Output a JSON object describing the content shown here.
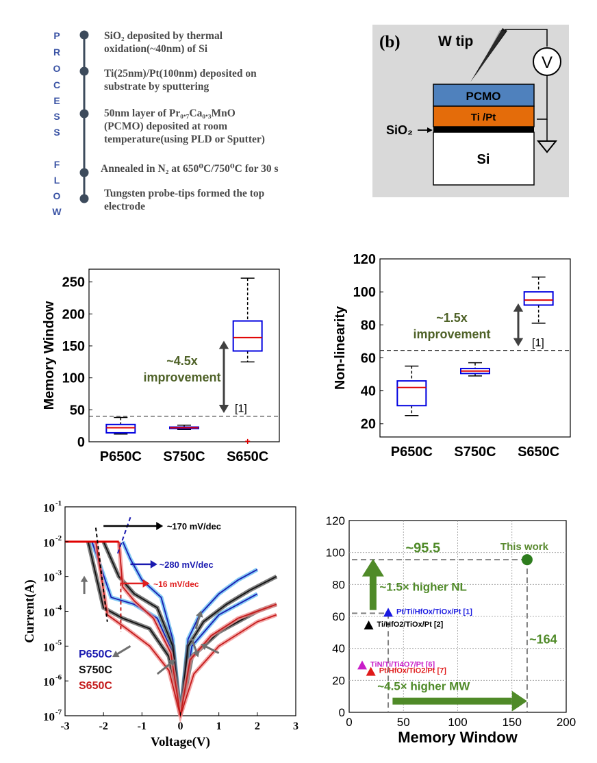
{
  "process_flow": {
    "letters": [
      "P",
      "R",
      "O",
      "C",
      "E",
      "S",
      "S",
      "F",
      "L",
      "O",
      "W"
    ],
    "steps": [
      {
        "label": "SiO₂ deposited by thermal\noxidation(~40nm) of Si"
      },
      {
        "label": "Ti(25nm)/Pt(100nm) deposited on\nsubstrate by sputtering"
      },
      {
        "label": "50nm layer of Pr₀.₇Ca₀.₃MnO\n(PCMO) deposited at room\ntemperature(using PLD or Sputter)"
      },
      {
        "label": "Annealed in N₂ at 650⁰C/750⁰C for 30 s"
      },
      {
        "label": "Tungsten probe-tips formed the top\nelectrode"
      }
    ]
  },
  "device_diagram": {
    "panel_label": "(b)",
    "tip_label": "W tip",
    "meter_label": "V",
    "layers": {
      "pcmo": "PCMO",
      "tipt": "Ti /Pt",
      "si": "Si",
      "sio2": "SiO₂"
    },
    "colors": {
      "background": "#d9d9d9",
      "pcmo": "#4f81bd",
      "tipt": "#e46c0a",
      "sio2": "#000000",
      "si": "#ffffff"
    }
  },
  "chart_data": [
    {
      "type": "box",
      "ylabel": "Memory Window",
      "categories": [
        "P650C",
        "S750C",
        "S650C"
      ],
      "ylim": [
        0,
        270
      ],
      "yticks": [
        0,
        50,
        100,
        150,
        200,
        250
      ],
      "boxes": [
        {
          "whisker_low": 12,
          "q1": 14,
          "median": 22,
          "q3": 27,
          "whisker_high": 38
        },
        {
          "whisker_low": 19,
          "q1": 21,
          "median": 22,
          "q3": 23,
          "whisker_high": 26
        },
        {
          "whisker_low": 125,
          "q1": 142,
          "median": 163,
          "q3": 189,
          "whisker_high": 256,
          "outlier": 0
        }
      ],
      "reference_line": {
        "value": 40,
        "label": "[1]"
      },
      "annotation": {
        "text": "~4.5x improvement",
        "line1": "~4.5x",
        "line2": "improvement",
        "arrow_from": 45,
        "arrow_to": 158
      }
    },
    {
      "type": "box",
      "ylabel": "Non-linearity",
      "categories": [
        "P650C",
        "S750C",
        "S650C"
      ],
      "ylim": [
        12,
        120
      ],
      "yticks": [
        20,
        40,
        60,
        80,
        100,
        120
      ],
      "boxes": [
        {
          "whisker_low": 25,
          "q1": 31,
          "median": 42,
          "q3": 46,
          "whisker_high": 55
        },
        {
          "whisker_low": 49,
          "q1": 50.5,
          "median": 52,
          "q3": 53.5,
          "whisker_high": 57
        },
        {
          "whisker_low": 81,
          "q1": 92,
          "median": 95,
          "q3": 100,
          "whisker_high": 109
        }
      ],
      "reference_line": {
        "value": 64.5,
        "label": "[1]"
      },
      "annotation": {
        "text": "~1.5x improvement",
        "line1": "~1.5x",
        "line2": "improvement",
        "arrow_from": 67,
        "arrow_to": 93
      }
    },
    {
      "type": "line",
      "xlabel": "Voltage(V)",
      "ylabel": "Current(A)",
      "xlim": [
        -3,
        3
      ],
      "xticks": [
        -3,
        -2,
        -1,
        0,
        1,
        2,
        3
      ],
      "ylim_log10": [
        -7,
        -1
      ],
      "ytick_base": "10",
      "ytick_exponents": [
        "-7",
        "-6",
        "-5",
        "-4",
        "-3",
        "-2",
        "-1"
      ],
      "series": [
        {
          "name": "P650C",
          "color": "#1a1ab0",
          "up": [
            [
              -1.5,
              -2
            ],
            [
              -1.3,
              -2.5
            ],
            [
              -1,
              -3.1
            ],
            [
              -0.5,
              -3.6
            ],
            [
              -0.2,
              -4.8
            ],
            [
              0,
              -7
            ],
            [
              0.2,
              -4.8
            ],
            [
              0.5,
              -4.1
            ],
            [
              1,
              -3.5
            ],
            [
              1.5,
              -3.1
            ],
            [
              2,
              -2.8
            ]
          ],
          "down": [
            [
              -2.3,
              -2
            ],
            [
              -1.8,
              -3.6
            ],
            [
              -1.2,
              -3.8
            ],
            [
              -0.6,
              -4.2
            ],
            [
              -0.2,
              -5.2
            ],
            [
              0,
              -7
            ],
            [
              0.3,
              -5.0
            ],
            [
              1,
              -4.1
            ],
            [
              2,
              -3.5
            ]
          ]
        },
        {
          "name": "S750C",
          "color": "#111111",
          "up": [
            [
              -2,
              -2
            ],
            [
              -1.6,
              -3
            ],
            [
              -1.2,
              -3.5
            ],
            [
              -0.6,
              -3.9
            ],
            [
              -0.2,
              -5
            ],
            [
              0,
              -7
            ],
            [
              0.2,
              -5
            ],
            [
              0.6,
              -4.3
            ],
            [
              1.2,
              -3.8
            ],
            [
              1.8,
              -3.4
            ],
            [
              2.5,
              -3
            ]
          ],
          "down": [
            [
              -2.4,
              -2
            ],
            [
              -2,
              -3.9
            ],
            [
              -1.5,
              -4.2
            ],
            [
              -0.8,
              -4.5
            ],
            [
              -0.3,
              -5.3
            ],
            [
              0,
              -7
            ],
            [
              0.3,
              -5.3
            ],
            [
              1,
              -4.6
            ],
            [
              2,
              -4.0
            ],
            [
              2.5,
              -3.8
            ]
          ]
        },
        {
          "name": "S650C",
          "color": "#c41a1a",
          "up": [
            [
              -1.6,
              -2
            ],
            [
              -1.5,
              -3.3
            ],
            [
              -1.2,
              -3.7
            ],
            [
              -0.7,
              -4.2
            ],
            [
              -0.25,
              -5.2
            ],
            [
              0,
              -7
            ],
            [
              0.25,
              -5.4
            ],
            [
              0.8,
              -4.7
            ],
            [
              1.5,
              -4.2
            ],
            [
              2.5,
              -3.8
            ]
          ],
          "down": [
            [
              -2.2,
              -2
            ],
            [
              -1.9,
              -4.1
            ],
            [
              -1.4,
              -4.5
            ],
            [
              -0.8,
              -5.0
            ],
            [
              -0.3,
              -5.7
            ],
            [
              0,
              -7
            ],
            [
              0.35,
              -5.8
            ],
            [
              1,
              -5.0
            ],
            [
              2,
              -4.3
            ],
            [
              2.5,
              -4.1
            ]
          ]
        }
      ],
      "compliance_log10": -2,
      "annotations": [
        {
          "text": "~170 mV/dec",
          "color": "#000000"
        },
        {
          "text": "~280 mV/dec",
          "color": "#1a1ab0"
        },
        {
          "text": "~16 mV/dec",
          "color": "#e02020"
        }
      ],
      "legend": [
        "P650C",
        "S750C",
        "S650C"
      ]
    },
    {
      "type": "scatter",
      "xlabel": "Memory Window",
      "xlim": [
        0,
        200
      ],
      "xticks": [
        0,
        50,
        100,
        150,
        200
      ],
      "ylim": [
        0,
        120
      ],
      "yticks": [
        0,
        20,
        40,
        60,
        80,
        100,
        120
      ],
      "points": [
        {
          "label": "This work",
          "x": 164,
          "y": 95.5,
          "marker": "circle",
          "color": "#2e7d1e"
        },
        {
          "label": "Pt/Ti/HfOx/TiOx/Pt [1]",
          "x": 36,
          "y": 62,
          "marker": "triangle",
          "color": "#1a1ae0"
        },
        {
          "label": "Ti/HfO2/TiOx/Pt [2]",
          "x": 18,
          "y": 54,
          "marker": "triangle",
          "color": "#000000"
        },
        {
          "label": "TiN/Ti/Ti4O7/Pt [6]",
          "x": 12,
          "y": 29,
          "marker": "triangle",
          "color": "#c81ec8"
        },
        {
          "label": "Pt/HfOx/TiO2/Pt [7]",
          "x": 20,
          "y": 25,
          "marker": "triangle",
          "color": "#e01a1a"
        }
      ],
      "annotations": {
        "nl_value": "~95.5",
        "mw_value": "~164",
        "nl_text": "~1.5× higher NL",
        "mw_text": "~4.5× higher MW"
      }
    }
  ]
}
